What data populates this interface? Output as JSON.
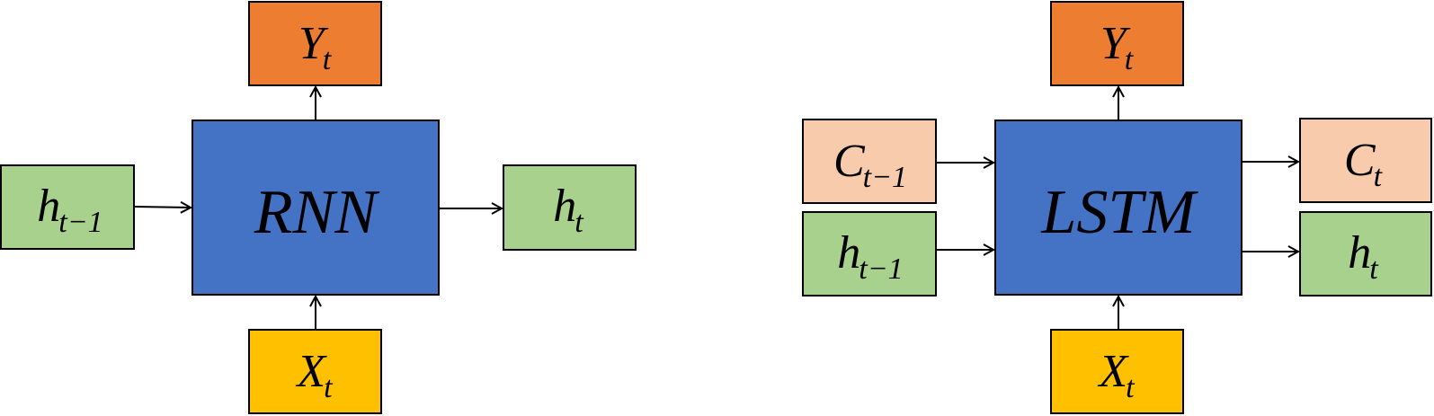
{
  "colors": {
    "cell": "#4472C4",
    "output": "#ED7D31",
    "input": "#FFC000",
    "hidden": "#A9D18E",
    "memory": "#F8CBAD"
  },
  "rnn": {
    "cell": "RNN",
    "output": {
      "base": "Y",
      "sub": "t"
    },
    "input": {
      "base": "X",
      "sub": "t"
    },
    "hidden_prev": {
      "base": "h",
      "sub": "t−1"
    },
    "hidden": {
      "base": "h",
      "sub": "t"
    }
  },
  "lstm": {
    "cell": "LSTM",
    "output": {
      "base": "Y",
      "sub": "t"
    },
    "input": {
      "base": "X",
      "sub": "t"
    },
    "cell_prev": {
      "base": "C",
      "sub": "t−1"
    },
    "hidden_prev": {
      "base": "h",
      "sub": "t−1"
    },
    "cell_state": {
      "base": "C",
      "sub": "t"
    },
    "hidden": {
      "base": "h",
      "sub": "t"
    }
  }
}
